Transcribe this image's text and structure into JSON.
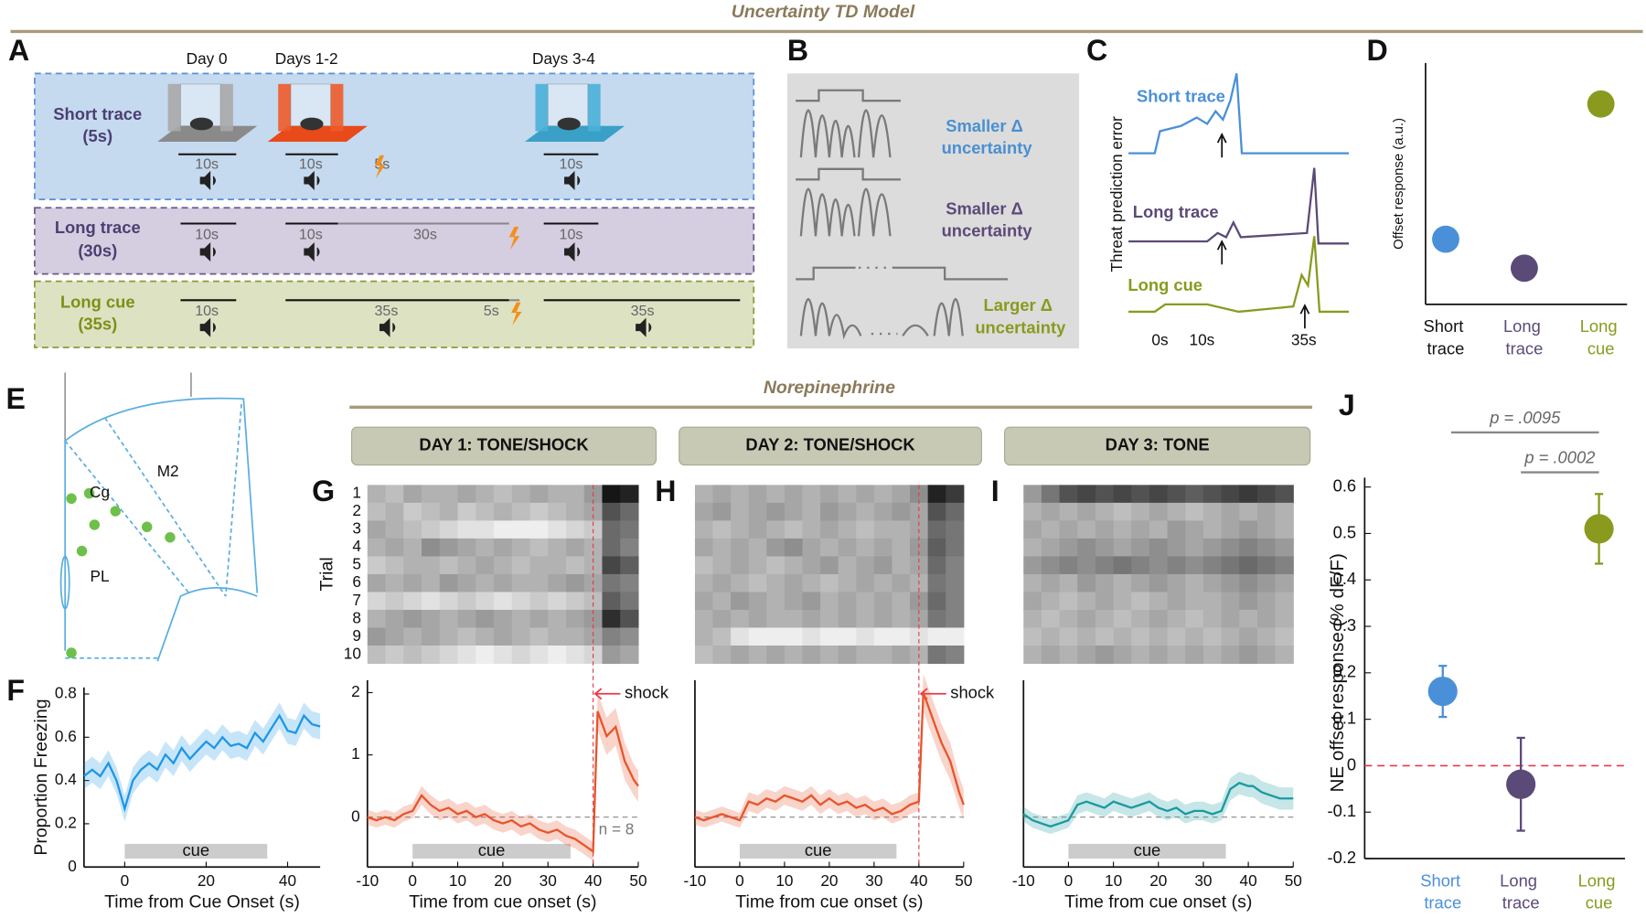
{
  "title": "Uncertainty TD Model",
  "section_title": "Norepinephrine",
  "panel_labels": [
    "A",
    "B",
    "C",
    "D",
    "E",
    "F",
    "G",
    "H",
    "I",
    "J"
  ],
  "panel_a": {
    "days": [
      "Day 0",
      "Days 1-2",
      "Days 3-4"
    ],
    "rows": [
      {
        "name": "Short trace",
        "duration": "(5s)",
        "labels": [
          "10s",
          "10s",
          "5s",
          "10s"
        ]
      },
      {
        "name": "Long trace",
        "duration": "(30s)",
        "labels": [
          "10s",
          "10s",
          "30s",
          "10s"
        ]
      },
      {
        "name": "Long cue",
        "duration": "(35s)",
        "labels": [
          "10s",
          "35s",
          "5s",
          "35s"
        ]
      }
    ]
  },
  "panel_b": {
    "labels": [
      "Smaller Δ uncertainty",
      "Smaller Δ uncertainty",
      "Larger Δ uncertainty"
    ]
  },
  "panel_c": {
    "ylabel": "Threat prediction error",
    "traces": [
      "Short trace",
      "Long trace",
      "Long cue"
    ],
    "time_labels": [
      "0s",
      "10s",
      "35s"
    ]
  },
  "panel_e": {
    "regions": [
      "M2",
      "Cg",
      "PL"
    ]
  },
  "chart_data": [
    {
      "type": "scatter",
      "ylabel": "Offset response (a.u.)",
      "categories": [
        "Short trace",
        "Long trace",
        "Long cue"
      ],
      "values": [
        0.27,
        0.15,
        0.83
      ],
      "colors": [
        "#4a90d9",
        "#5b4a78",
        "#8a9a1e"
      ],
      "ylim": [
        0,
        1
      ]
    },
    {
      "type": "line",
      "ylabel": "Proportion Freezing",
      "xlabel": "Time from Cue Onset (s)",
      "color": "#1e96e8",
      "x": [
        -10,
        -8,
        -6,
        -4,
        -2,
        0,
        2,
        4,
        6,
        8,
        10,
        12,
        14,
        16,
        18,
        20,
        22,
        24,
        26,
        28,
        30,
        32,
        34,
        36,
        38,
        40,
        42,
        44,
        46,
        48
      ],
      "values": [
        0.42,
        0.45,
        0.42,
        0.48,
        0.4,
        0.27,
        0.4,
        0.45,
        0.48,
        0.45,
        0.52,
        0.48,
        0.55,
        0.5,
        0.54,
        0.58,
        0.55,
        0.6,
        0.56,
        0.57,
        0.55,
        0.62,
        0.58,
        0.64,
        0.7,
        0.63,
        0.62,
        0.7,
        0.66,
        0.65
      ],
      "error": [
        0.06,
        0.06,
        0.06,
        0.06,
        0.06,
        0.06,
        0.06,
        0.06,
        0.06,
        0.06,
        0.06,
        0.06,
        0.06,
        0.06,
        0.06,
        0.06,
        0.06,
        0.06,
        0.06,
        0.06,
        0.06,
        0.06,
        0.06,
        0.06,
        0.06,
        0.06,
        0.06,
        0.06,
        0.06,
        0.06
      ],
      "xlim": [
        -10,
        48
      ],
      "xticks": [
        0,
        20,
        40
      ],
      "ylim": [
        0,
        0.83
      ],
      "yticks": [
        0,
        0.2,
        0.4,
        0.6,
        0.8
      ],
      "cue": {
        "label": "cue",
        "span": [
          0,
          35
        ]
      }
    },
    {
      "type": "heatmap",
      "title": "DAY 1: TONE/SHOCK",
      "ylabel": "Trial",
      "rows": [
        1,
        2,
        3,
        4,
        5,
        6,
        7,
        8,
        9,
        10
      ],
      "bins": [
        -10,
        -6,
        -2,
        2,
        6,
        10,
        14,
        18,
        22,
        26,
        30,
        34,
        38,
        42,
        46,
        50
      ],
      "values": [
        [
          0.3,
          0.25,
          0.35,
          0.3,
          0.3,
          0.35,
          0.3,
          0.25,
          0.3,
          0.35,
          0.3,
          0.3,
          0.4,
          0.95,
          0.9
        ],
        [
          0.25,
          0.3,
          0.2,
          0.25,
          0.3,
          0.2,
          0.25,
          0.3,
          0.25,
          0.2,
          0.25,
          0.3,
          0.35,
          0.7,
          0.6
        ],
        [
          0.35,
          0.3,
          0.25,
          0.2,
          0.15,
          0.1,
          0.1,
          0.05,
          0.05,
          0.05,
          0.1,
          0.15,
          0.2,
          0.6,
          0.55
        ],
        [
          0.3,
          0.35,
          0.3,
          0.45,
          0.4,
          0.35,
          0.3,
          0.35,
          0.3,
          0.25,
          0.3,
          0.35,
          0.3,
          0.6,
          0.5
        ],
        [
          0.2,
          0.25,
          0.3,
          0.3,
          0.25,
          0.3,
          0.35,
          0.3,
          0.25,
          0.3,
          0.3,
          0.25,
          0.3,
          0.75,
          0.65
        ],
        [
          0.35,
          0.3,
          0.35,
          0.3,
          0.4,
          0.35,
          0.3,
          0.35,
          0.3,
          0.3,
          0.35,
          0.4,
          0.35,
          0.55,
          0.5
        ],
        [
          0.15,
          0.2,
          0.15,
          0.1,
          0.15,
          0.2,
          0.15,
          0.1,
          0.15,
          0.2,
          0.15,
          0.2,
          0.25,
          0.65,
          0.55
        ],
        [
          0.3,
          0.35,
          0.4,
          0.35,
          0.3,
          0.35,
          0.4,
          0.35,
          0.3,
          0.35,
          0.3,
          0.35,
          0.4,
          0.85,
          0.7
        ],
        [
          0.4,
          0.35,
          0.3,
          0.35,
          0.3,
          0.25,
          0.3,
          0.35,
          0.3,
          0.25,
          0.3,
          0.3,
          0.35,
          0.5,
          0.45
        ],
        [
          0.25,
          0.2,
          0.25,
          0.2,
          0.15,
          0.1,
          0.05,
          0.1,
          0.15,
          0.1,
          0.05,
          0.1,
          0.15,
          0.4,
          0.35
        ]
      ]
    },
    {
      "type": "line",
      "xlabel": "Time from cue onset (s)",
      "color": "#e8542a",
      "x": [
        -10,
        -8,
        -6,
        -4,
        -2,
        0,
        2,
        4,
        6,
        8,
        10,
        12,
        14,
        16,
        18,
        20,
        22,
        24,
        26,
        28,
        30,
        32,
        34,
        36,
        38,
        40,
        41,
        43,
        45,
        47,
        49,
        50
      ],
      "values": [
        0.0,
        -0.05,
        0.0,
        -0.05,
        0.05,
        0.1,
        0.35,
        0.2,
        0.1,
        0.15,
        0.05,
        0.1,
        0.0,
        0.05,
        -0.05,
        -0.1,
        -0.05,
        -0.15,
        -0.1,
        -0.2,
        -0.25,
        -0.2,
        -0.3,
        -0.35,
        -0.45,
        -0.55,
        1.7,
        1.3,
        1.45,
        0.9,
        0.6,
        0.5
      ],
      "error": [
        0.12,
        0.12,
        0.12,
        0.12,
        0.12,
        0.12,
        0.15,
        0.15,
        0.15,
        0.15,
        0.15,
        0.15,
        0.15,
        0.15,
        0.15,
        0.15,
        0.15,
        0.15,
        0.15,
        0.15,
        0.15,
        0.15,
        0.15,
        0.15,
        0.15,
        0.15,
        0.3,
        0.3,
        0.3,
        0.3,
        0.25,
        0.25
      ],
      "xlim": [
        -10,
        50
      ],
      "xticks": [
        -10,
        0,
        10,
        20,
        30,
        40,
        50
      ],
      "ylim": [
        -0.8,
        2.2
      ],
      "yticks": [
        0,
        1,
        2
      ],
      "cue": {
        "label": "cue",
        "span": [
          0,
          35
        ]
      },
      "shock": {
        "label": "shock",
        "time": 40
      },
      "note": "n = 8"
    },
    {
      "type": "heatmap",
      "title": "DAY 2: TONE/SHOCK",
      "bins": [
        -10,
        -6,
        -2,
        2,
        6,
        10,
        14,
        18,
        22,
        26,
        30,
        34,
        38,
        42,
        46,
        50
      ],
      "values": [
        [
          0.3,
          0.35,
          0.3,
          0.35,
          0.3,
          0.35,
          0.3,
          0.35,
          0.3,
          0.35,
          0.3,
          0.35,
          0.45,
          0.9,
          0.8
        ],
        [
          0.35,
          0.4,
          0.3,
          0.35,
          0.4,
          0.35,
          0.3,
          0.4,
          0.35,
          0.3,
          0.35,
          0.4,
          0.35,
          0.7,
          0.6
        ],
        [
          0.3,
          0.25,
          0.3,
          0.35,
          0.3,
          0.25,
          0.3,
          0.35,
          0.3,
          0.25,
          0.3,
          0.3,
          0.35,
          0.6,
          0.55
        ],
        [
          0.35,
          0.3,
          0.35,
          0.3,
          0.4,
          0.45,
          0.35,
          0.3,
          0.35,
          0.3,
          0.35,
          0.3,
          0.4,
          0.65,
          0.55
        ],
        [
          0.25,
          0.3,
          0.35,
          0.3,
          0.25,
          0.3,
          0.35,
          0.4,
          0.3,
          0.35,
          0.4,
          0.3,
          0.35,
          0.6,
          0.5
        ],
        [
          0.3,
          0.35,
          0.3,
          0.25,
          0.3,
          0.35,
          0.3,
          0.25,
          0.3,
          0.35,
          0.3,
          0.35,
          0.3,
          0.55,
          0.5
        ],
        [
          0.35,
          0.3,
          0.4,
          0.35,
          0.3,
          0.35,
          0.4,
          0.3,
          0.35,
          0.3,
          0.35,
          0.3,
          0.4,
          0.6,
          0.5
        ],
        [
          0.3,
          0.35,
          0.3,
          0.35,
          0.3,
          0.3,
          0.35,
          0.3,
          0.35,
          0.3,
          0.35,
          0.3,
          0.35,
          0.55,
          0.5
        ],
        [
          0.3,
          0.25,
          0.1,
          0.05,
          0.05,
          0.05,
          0.1,
          0.05,
          0.05,
          0.1,
          0.05,
          0.05,
          0.1,
          0.05,
          0.05
        ],
        [
          0.25,
          0.3,
          0.35,
          0.3,
          0.35,
          0.3,
          0.35,
          0.3,
          0.35,
          0.3,
          0.3,
          0.35,
          0.3,
          0.55,
          0.5
        ]
      ]
    },
    {
      "type": "line",
      "xlabel": "Time from cue onset (s)",
      "color": "#e8542a",
      "x": [
        -10,
        -8,
        -6,
        -4,
        -2,
        0,
        2,
        4,
        6,
        8,
        10,
        12,
        14,
        16,
        18,
        20,
        22,
        24,
        26,
        28,
        30,
        32,
        34,
        36,
        38,
        40,
        41,
        43,
        45,
        47,
        49,
        50
      ],
      "values": [
        0.0,
        -0.05,
        0.0,
        0.05,
        0.0,
        -0.05,
        0.25,
        0.2,
        0.3,
        0.25,
        0.35,
        0.3,
        0.25,
        0.35,
        0.2,
        0.3,
        0.2,
        0.25,
        0.15,
        0.2,
        0.1,
        0.15,
        0.05,
        0.1,
        0.2,
        0.25,
        2.0,
        1.6,
        1.2,
        0.9,
        0.4,
        0.2
      ],
      "error": [
        0.12,
        0.12,
        0.12,
        0.12,
        0.12,
        0.12,
        0.15,
        0.15,
        0.15,
        0.15,
        0.15,
        0.15,
        0.15,
        0.15,
        0.15,
        0.15,
        0.15,
        0.15,
        0.15,
        0.15,
        0.15,
        0.15,
        0.15,
        0.15,
        0.15,
        0.15,
        0.3,
        0.3,
        0.3,
        0.3,
        0.25,
        0.25
      ],
      "xlim": [
        -10,
        50
      ],
      "xticks": [
        -10,
        0,
        10,
        20,
        30,
        40,
        50
      ],
      "ylim": [
        -0.8,
        2.2
      ],
      "cue": {
        "label": "cue",
        "span": [
          0,
          35
        ]
      },
      "shock": {
        "label": "shock",
        "time": 40
      }
    },
    {
      "type": "heatmap",
      "title": "DAY 3: TONE",
      "bins": [
        -10,
        -6,
        -2,
        2,
        6,
        10,
        14,
        18,
        22,
        26,
        30,
        34,
        38,
        42,
        46,
        50
      ],
      "values": [
        [
          0.4,
          0.55,
          0.7,
          0.75,
          0.7,
          0.75,
          0.7,
          0.75,
          0.7,
          0.65,
          0.7,
          0.75,
          0.8,
          0.75,
          0.7
        ],
        [
          0.3,
          0.35,
          0.3,
          0.35,
          0.3,
          0.25,
          0.3,
          0.35,
          0.3,
          0.25,
          0.3,
          0.35,
          0.3,
          0.35,
          0.3
        ],
        [
          0.35,
          0.3,
          0.35,
          0.3,
          0.35,
          0.3,
          0.35,
          0.3,
          0.4,
          0.35,
          0.3,
          0.35,
          0.4,
          0.35,
          0.3
        ],
        [
          0.3,
          0.35,
          0.4,
          0.45,
          0.4,
          0.35,
          0.4,
          0.45,
          0.4,
          0.35,
          0.4,
          0.45,
          0.5,
          0.45,
          0.4
        ],
        [
          0.4,
          0.45,
          0.5,
          0.45,
          0.5,
          0.55,
          0.5,
          0.45,
          0.5,
          0.45,
          0.5,
          0.55,
          0.6,
          0.55,
          0.5
        ],
        [
          0.3,
          0.35,
          0.3,
          0.4,
          0.35,
          0.3,
          0.35,
          0.4,
          0.35,
          0.3,
          0.35,
          0.4,
          0.45,
          0.4,
          0.35
        ],
        [
          0.35,
          0.3,
          0.25,
          0.3,
          0.35,
          0.3,
          0.25,
          0.3,
          0.35,
          0.3,
          0.3,
          0.35,
          0.4,
          0.35,
          0.3
        ],
        [
          0.3,
          0.25,
          0.3,
          0.35,
          0.3,
          0.25,
          0.3,
          0.35,
          0.3,
          0.25,
          0.3,
          0.35,
          0.3,
          0.35,
          0.3
        ],
        [
          0.25,
          0.3,
          0.25,
          0.3,
          0.25,
          0.3,
          0.25,
          0.3,
          0.25,
          0.3,
          0.25,
          0.3,
          0.35,
          0.3,
          0.25
        ],
        [
          0.3,
          0.35,
          0.3,
          0.35,
          0.4,
          0.35,
          0.3,
          0.35,
          0.3,
          0.35,
          0.3,
          0.35,
          0.4,
          0.35,
          0.3
        ]
      ]
    },
    {
      "type": "line",
      "xlabel": "Time from cue onset (s)",
      "color": "#1a9aa0",
      "x": [
        -10,
        -8,
        -6,
        -4,
        -2,
        0,
        2,
        4,
        6,
        8,
        10,
        12,
        14,
        16,
        18,
        20,
        22,
        24,
        26,
        28,
        30,
        32,
        34,
        36,
        38,
        40,
        41,
        43,
        45,
        47,
        49,
        50
      ],
      "values": [
        0.05,
        -0.05,
        -0.1,
        -0.15,
        -0.1,
        -0.05,
        0.2,
        0.25,
        0.2,
        0.15,
        0.25,
        0.2,
        0.15,
        0.2,
        0.25,
        0.15,
        0.1,
        0.15,
        0.05,
        0.1,
        0.1,
        0.05,
        0.1,
        0.45,
        0.55,
        0.5,
        0.5,
        0.4,
        0.35,
        0.3,
        0.3,
        0.3
      ],
      "error": [
        0.12,
        0.12,
        0.12,
        0.12,
        0.12,
        0.12,
        0.15,
        0.15,
        0.15,
        0.15,
        0.15,
        0.15,
        0.15,
        0.15,
        0.15,
        0.15,
        0.15,
        0.15,
        0.15,
        0.15,
        0.15,
        0.15,
        0.15,
        0.18,
        0.18,
        0.18,
        0.18,
        0.18,
        0.18,
        0.18,
        0.18,
        0.18
      ],
      "xlim": [
        -10,
        50
      ],
      "xticks": [
        -10,
        0,
        10,
        20,
        30,
        40,
        50
      ],
      "ylim": [
        -0.8,
        2.2
      ],
      "cue": {
        "label": "cue",
        "span": [
          0,
          35
        ]
      }
    },
    {
      "type": "scatter",
      "ylabel": "NE offset response (% dF/F)",
      "categories": [
        "Short trace",
        "Long trace",
        "Long cue"
      ],
      "values": [
        0.16,
        -0.04,
        0.51
      ],
      "error": [
        0.055,
        0.1,
        0.075
      ],
      "colors": [
        "#4a90d9",
        "#5b4a78",
        "#8a9a1e"
      ],
      "ylim": [
        -0.2,
        0.6
      ],
      "yticks": [
        -0.2,
        -0.1,
        0,
        0.1,
        0.2,
        0.3,
        0.4,
        0.5,
        0.6
      ],
      "annotations": [
        "p = .0095",
        "p = .0002"
      ]
    }
  ]
}
